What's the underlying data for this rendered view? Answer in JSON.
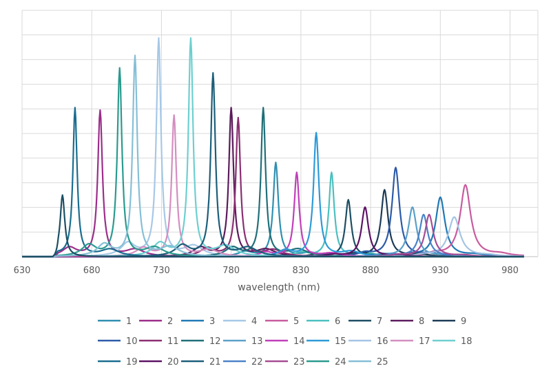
{
  "chart_data": {
    "type": "line",
    "xlabel": "wavelength (nm)",
    "ylabel": "",
    "xlim": [
      630,
      1000
    ],
    "ylim": [
      0,
      1
    ],
    "x_ticks": [
      "630",
      "680",
      "730",
      "780",
      "830",
      "880",
      "930",
      "980"
    ],
    "grid": true,
    "legend_position": "bottom",
    "series": [
      {
        "name": "1",
        "color": "#2e8fb0",
        "peak": 812,
        "height": 0.38,
        "width": 2.2,
        "side": 0.05
      },
      {
        "name": "2",
        "color": "#9b2d8a",
        "peak": 686,
        "height": 0.59,
        "width": 2.0,
        "side": 0.06
      },
      {
        "name": "3",
        "color": "#1f78b4",
        "peak": 930,
        "height": 0.24,
        "width": 4.0,
        "side": 0.04
      },
      {
        "name": "4",
        "color": "#a6c8e6",
        "peak": 728,
        "height": 0.88,
        "width": 2.0,
        "side": 0.06
      },
      {
        "name": "5",
        "color": "#c75b9e",
        "peak": 948,
        "height": 0.29,
        "width": 4.5,
        "side": 0.04
      },
      {
        "name": "6",
        "color": "#4bbfbf",
        "peak": 852,
        "height": 0.34,
        "width": 2.3,
        "side": 0.05
      },
      {
        "name": "7",
        "color": "#1c4e63",
        "peak": 864,
        "height": 0.23,
        "width": 2.5,
        "side": 0.04
      },
      {
        "name": "8",
        "color": "#5b1a5c",
        "peak": 780,
        "height": 0.6,
        "width": 2.0,
        "side": 0.06
      },
      {
        "name": "9",
        "color": "#1b3a57",
        "peak": 890,
        "height": 0.27,
        "width": 3.0,
        "side": 0.04
      },
      {
        "name": "10",
        "color": "#2b5aa8",
        "peak": 898,
        "height": 0.36,
        "width": 3.2,
        "side": 0.04
      },
      {
        "name": "11",
        "color": "#8a2d72",
        "peak": 785,
        "height": 0.56,
        "width": 2.0,
        "side": 0.06
      },
      {
        "name": "12",
        "color": "#1f6f78",
        "peak": 803,
        "height": 0.6,
        "width": 2.0,
        "side": 0.06
      },
      {
        "name": "13",
        "color": "#5aa0c8",
        "peak": 910,
        "height": 0.2,
        "width": 3.5,
        "side": 0.04
      },
      {
        "name": "14",
        "color": "#c03fb8",
        "peak": 827,
        "height": 0.34,
        "width": 2.2,
        "side": 0.05
      },
      {
        "name": "15",
        "color": "#2d9ad8",
        "peak": 841,
        "height": 0.5,
        "width": 2.3,
        "side": 0.05
      },
      {
        "name": "16",
        "color": "#a4c4e4",
        "peak": 940,
        "height": 0.16,
        "width": 5.0,
        "side": 0.04
      },
      {
        "name": "17",
        "color": "#d48ec0",
        "peak": 739,
        "height": 0.57,
        "width": 2.0,
        "side": 0.06
      },
      {
        "name": "18",
        "color": "#6dcfd0",
        "peak": 751,
        "height": 0.88,
        "width": 2.0,
        "side": 0.06
      },
      {
        "name": "19",
        "color": "#1a6d8f",
        "peak": 668,
        "height": 0.6,
        "width": 1.8,
        "side": 0.06
      },
      {
        "name": "20",
        "color": "#5d1265",
        "peak": 876,
        "height": 0.2,
        "width": 3.0,
        "side": 0.04
      },
      {
        "name": "21",
        "color": "#1b5e7a",
        "peak": 767,
        "height": 0.74,
        "width": 2.0,
        "side": 0.06
      },
      {
        "name": "22",
        "color": "#4a82c8",
        "peak": 918,
        "height": 0.17,
        "width": 3.5,
        "side": 0.04
      },
      {
        "name": "23",
        "color": "#a64c94",
        "peak": 922,
        "height": 0.17,
        "width": 3.5,
        "side": 0.04
      },
      {
        "name": "24",
        "color": "#2a9a8e",
        "peak": 700,
        "height": 0.76,
        "width": 2.0,
        "side": 0.06
      },
      {
        "name": "25",
        "color": "#86bfd6",
        "peak": 711,
        "height": 0.81,
        "width": 2.0,
        "side": 0.06
      }
    ],
    "extra_peaks": [
      {
        "color": "#1c4e63",
        "peak": 659,
        "height": 0.25,
        "width": 2.0
      }
    ]
  }
}
